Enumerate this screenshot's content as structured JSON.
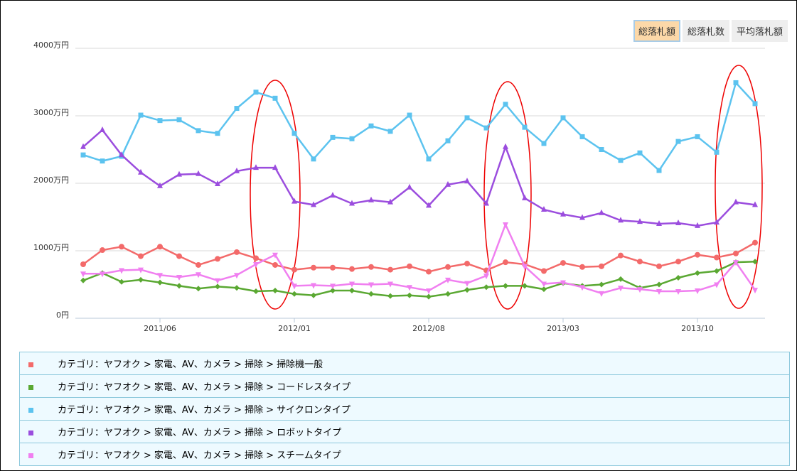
{
  "buttons": [
    "総落札額",
    "総落札数",
    "平均落札額"
  ],
  "chart_data": {
    "type": "line",
    "x": [
      "2011/02",
      "2011/03",
      "2011/04",
      "2011/05",
      "2011/06",
      "2011/07",
      "2011/08",
      "2011/09",
      "2011/10",
      "2011/11",
      "2011/12",
      "2012/01",
      "2012/02",
      "2012/03",
      "2012/04",
      "2012/05",
      "2012/06",
      "2012/07",
      "2012/08",
      "2012/09",
      "2012/10",
      "2012/11",
      "2012/12",
      "2013/01",
      "2013/02",
      "2013/03",
      "2013/04",
      "2013/05",
      "2013/06",
      "2013/07",
      "2013/08",
      "2013/09",
      "2013/10",
      "2013/11",
      "2013/12",
      "2014/01"
    ],
    "xticks": [
      "2011/06",
      "2012/01",
      "2012/08",
      "2013/03",
      "2013/10"
    ],
    "ylim": [
      0,
      4000
    ],
    "yticks": [
      {
        "value": 0,
        "label": "0円"
      },
      {
        "value": 1000,
        "label": "1000万円"
      },
      {
        "value": 2000,
        "label": "2000万円"
      },
      {
        "value": 3000,
        "label": "3000万円"
      },
      {
        "value": 4000,
        "label": "4000万円"
      }
    ],
    "grid": true,
    "series": [
      {
        "name": "カテゴリ：ヤフオク > 家電、AV、カメラ > 掃除 > 掃除機一般",
        "color": "#f36a6a",
        "marker": "circle",
        "values": [
          800,
          1010,
          1060,
          920,
          1060,
          920,
          790,
          880,
          980,
          890,
          790,
          720,
          750,
          750,
          730,
          760,
          720,
          770,
          690,
          760,
          810,
          710,
          830,
          800,
          700,
          820,
          760,
          770,
          930,
          840,
          770,
          840,
          940,
          900,
          960,
          1120
        ]
      },
      {
        "name": "カテゴリ：ヤフオク > 家電、AV、カメラ > 掃除 > コードレスタイプ",
        "color": "#5aa832",
        "marker": "diamond",
        "values": [
          560,
          670,
          540,
          570,
          530,
          480,
          440,
          470,
          450,
          400,
          410,
          360,
          340,
          410,
          410,
          360,
          330,
          340,
          320,
          360,
          420,
          460,
          480,
          480,
          430,
          520,
          480,
          500,
          580,
          450,
          500,
          600,
          670,
          700,
          830,
          840
        ]
      },
      {
        "name": "カテゴリ：ヤフオク > 家電、AV、カメラ > 掃除 > サイクロンタイプ",
        "color": "#5cc3ef",
        "marker": "square",
        "values": [
          2420,
          2330,
          2400,
          3010,
          2930,
          2940,
          2780,
          2740,
          3110,
          3350,
          3260,
          2740,
          2360,
          2680,
          2660,
          2850,
          2770,
          3010,
          2360,
          2630,
          2970,
          2820,
          3170,
          2830,
          2590,
          2970,
          2690,
          2500,
          2340,
          2450,
          2190,
          2620,
          2690,
          2460,
          3490,
          3180
        ]
      },
      {
        "name": "カテゴリ：ヤフオク > 家電、AV、カメラ > 掃除 > ロボットタイプ",
        "color": "#9b4dde",
        "marker": "triangle",
        "values": [
          2540,
          2790,
          2420,
          2160,
          1960,
          2130,
          2140,
          1990,
          2180,
          2230,
          2230,
          1730,
          1680,
          1820,
          1700,
          1750,
          1720,
          1940,
          1670,
          1980,
          2030,
          1700,
          2540,
          1780,
          1610,
          1540,
          1490,
          1560,
          1450,
          1430,
          1400,
          1410,
          1370,
          1420,
          1720,
          1680
        ]
      },
      {
        "name": "カテゴリ：ヤフオク > 家電、AV、カメラ > 掃除 > スチームタイプ",
        "color": "#f07ff0",
        "marker": "triangle-down",
        "values": [
          660,
          660,
          710,
          720,
          640,
          610,
          650,
          560,
          640,
          800,
          940,
          480,
          490,
          480,
          510,
          500,
          510,
          460,
          410,
          570,
          520,
          630,
          1390,
          770,
          510,
          530,
          460,
          370,
          450,
          430,
          400,
          400,
          410,
          500,
          830,
          420
        ]
      }
    ]
  }
}
